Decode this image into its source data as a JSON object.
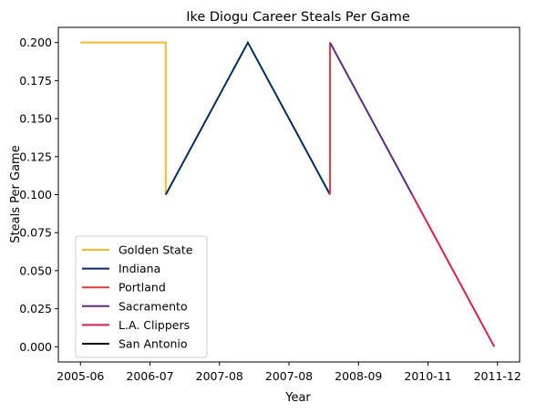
{
  "chart_data": {
    "type": "line",
    "title": "Ike Diogu Career Steals Per Game",
    "xlabel": "Year",
    "ylabel": "Steals Per Game",
    "x_ticks": [
      "2005-06",
      "2006-07",
      "2007-08",
      "2007-08",
      "2008-09",
      "2010-11",
      "2011-12"
    ],
    "y_ticks": [
      "0.000",
      "0.025",
      "0.050",
      "0.075",
      "0.100",
      "0.125",
      "0.150",
      "0.175",
      "0.200"
    ],
    "ylim": [
      -0.01,
      0.21
    ],
    "grid": false,
    "legend_placement": "lower-left",
    "series": [
      {
        "name": "Golden State",
        "color": "#FDB927",
        "points": [
          [
            2005.6,
            0.2
          ],
          [
            2006.95,
            0.2
          ],
          [
            2006.95,
            0.1
          ]
        ]
      },
      {
        "name": "Indiana",
        "color": "#002D62",
        "points": [
          [
            2006.95,
            0.1
          ],
          [
            2008.25,
            0.2
          ],
          [
            2009.55,
            0.1
          ]
        ]
      },
      {
        "name": "Portland",
        "color": "#E03A3E",
        "points": [
          [
            2009.55,
            0.1
          ],
          [
            2009.55,
            0.2
          ]
        ]
      },
      {
        "name": "Sacramento",
        "color": "#5A2D81",
        "points": [
          [
            2009.55,
            0.2
          ],
          [
            2010.85,
            0.1
          ]
        ]
      },
      {
        "name": "L.A. Clippers",
        "color": "#E31C4F",
        "points": [
          [
            2010.85,
            0.1
          ],
          [
            2012.15,
            0.0
          ]
        ]
      },
      {
        "name": "San Antonio",
        "color": "#000000",
        "points": []
      }
    ]
  }
}
